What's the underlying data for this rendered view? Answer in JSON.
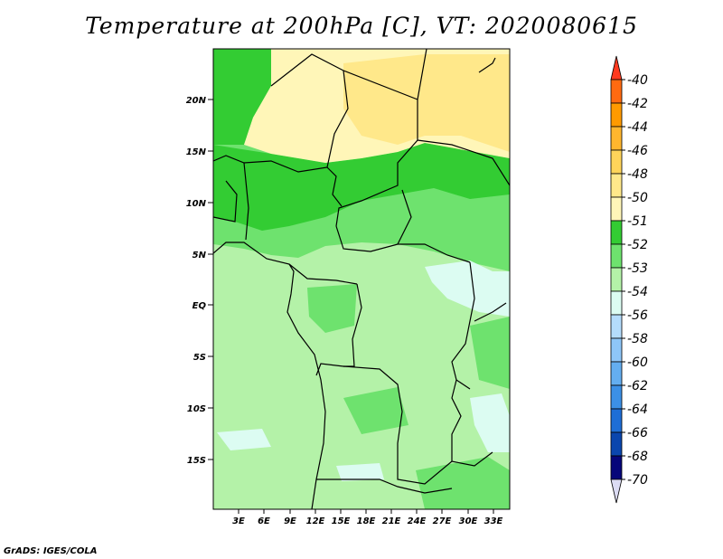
{
  "title": "Temperature at 200hPa [C], VT: 2020080615",
  "credit": "GrADS: IGES/COLA",
  "map": {
    "lat_ticks": [
      "20N",
      "15N",
      "10N",
      "5N",
      "EQ",
      "5S",
      "10S",
      "15S"
    ],
    "lon_ticks": [
      "3E",
      "6E",
      "9E",
      "12E",
      "15E",
      "18E",
      "21E",
      "24E",
      "27E",
      "30E",
      "33E"
    ]
  },
  "colorbar": {
    "labels": [
      "-40",
      "-42",
      "-44",
      "-46",
      "-48",
      "-50",
      "-51",
      "-52",
      "-53",
      "-54",
      "-56",
      "-58",
      "-60",
      "-62",
      "-64",
      "-66",
      "-68",
      "-70"
    ],
    "colors": [
      "#ff3a1f",
      "#ff6a10",
      "#ff9a00",
      "#ffb62e",
      "#ffd45a",
      "#ffe88a",
      "#fff6b8",
      "#33cc33",
      "#6ee26e",
      "#b4f2a8",
      "#dcfcf2",
      "#b4dcfc",
      "#8ec6f8",
      "#64aef0",
      "#3c90e6",
      "#1e6ed6",
      "#0a46ae",
      "#06067a",
      "#dcdcf4"
    ]
  }
}
